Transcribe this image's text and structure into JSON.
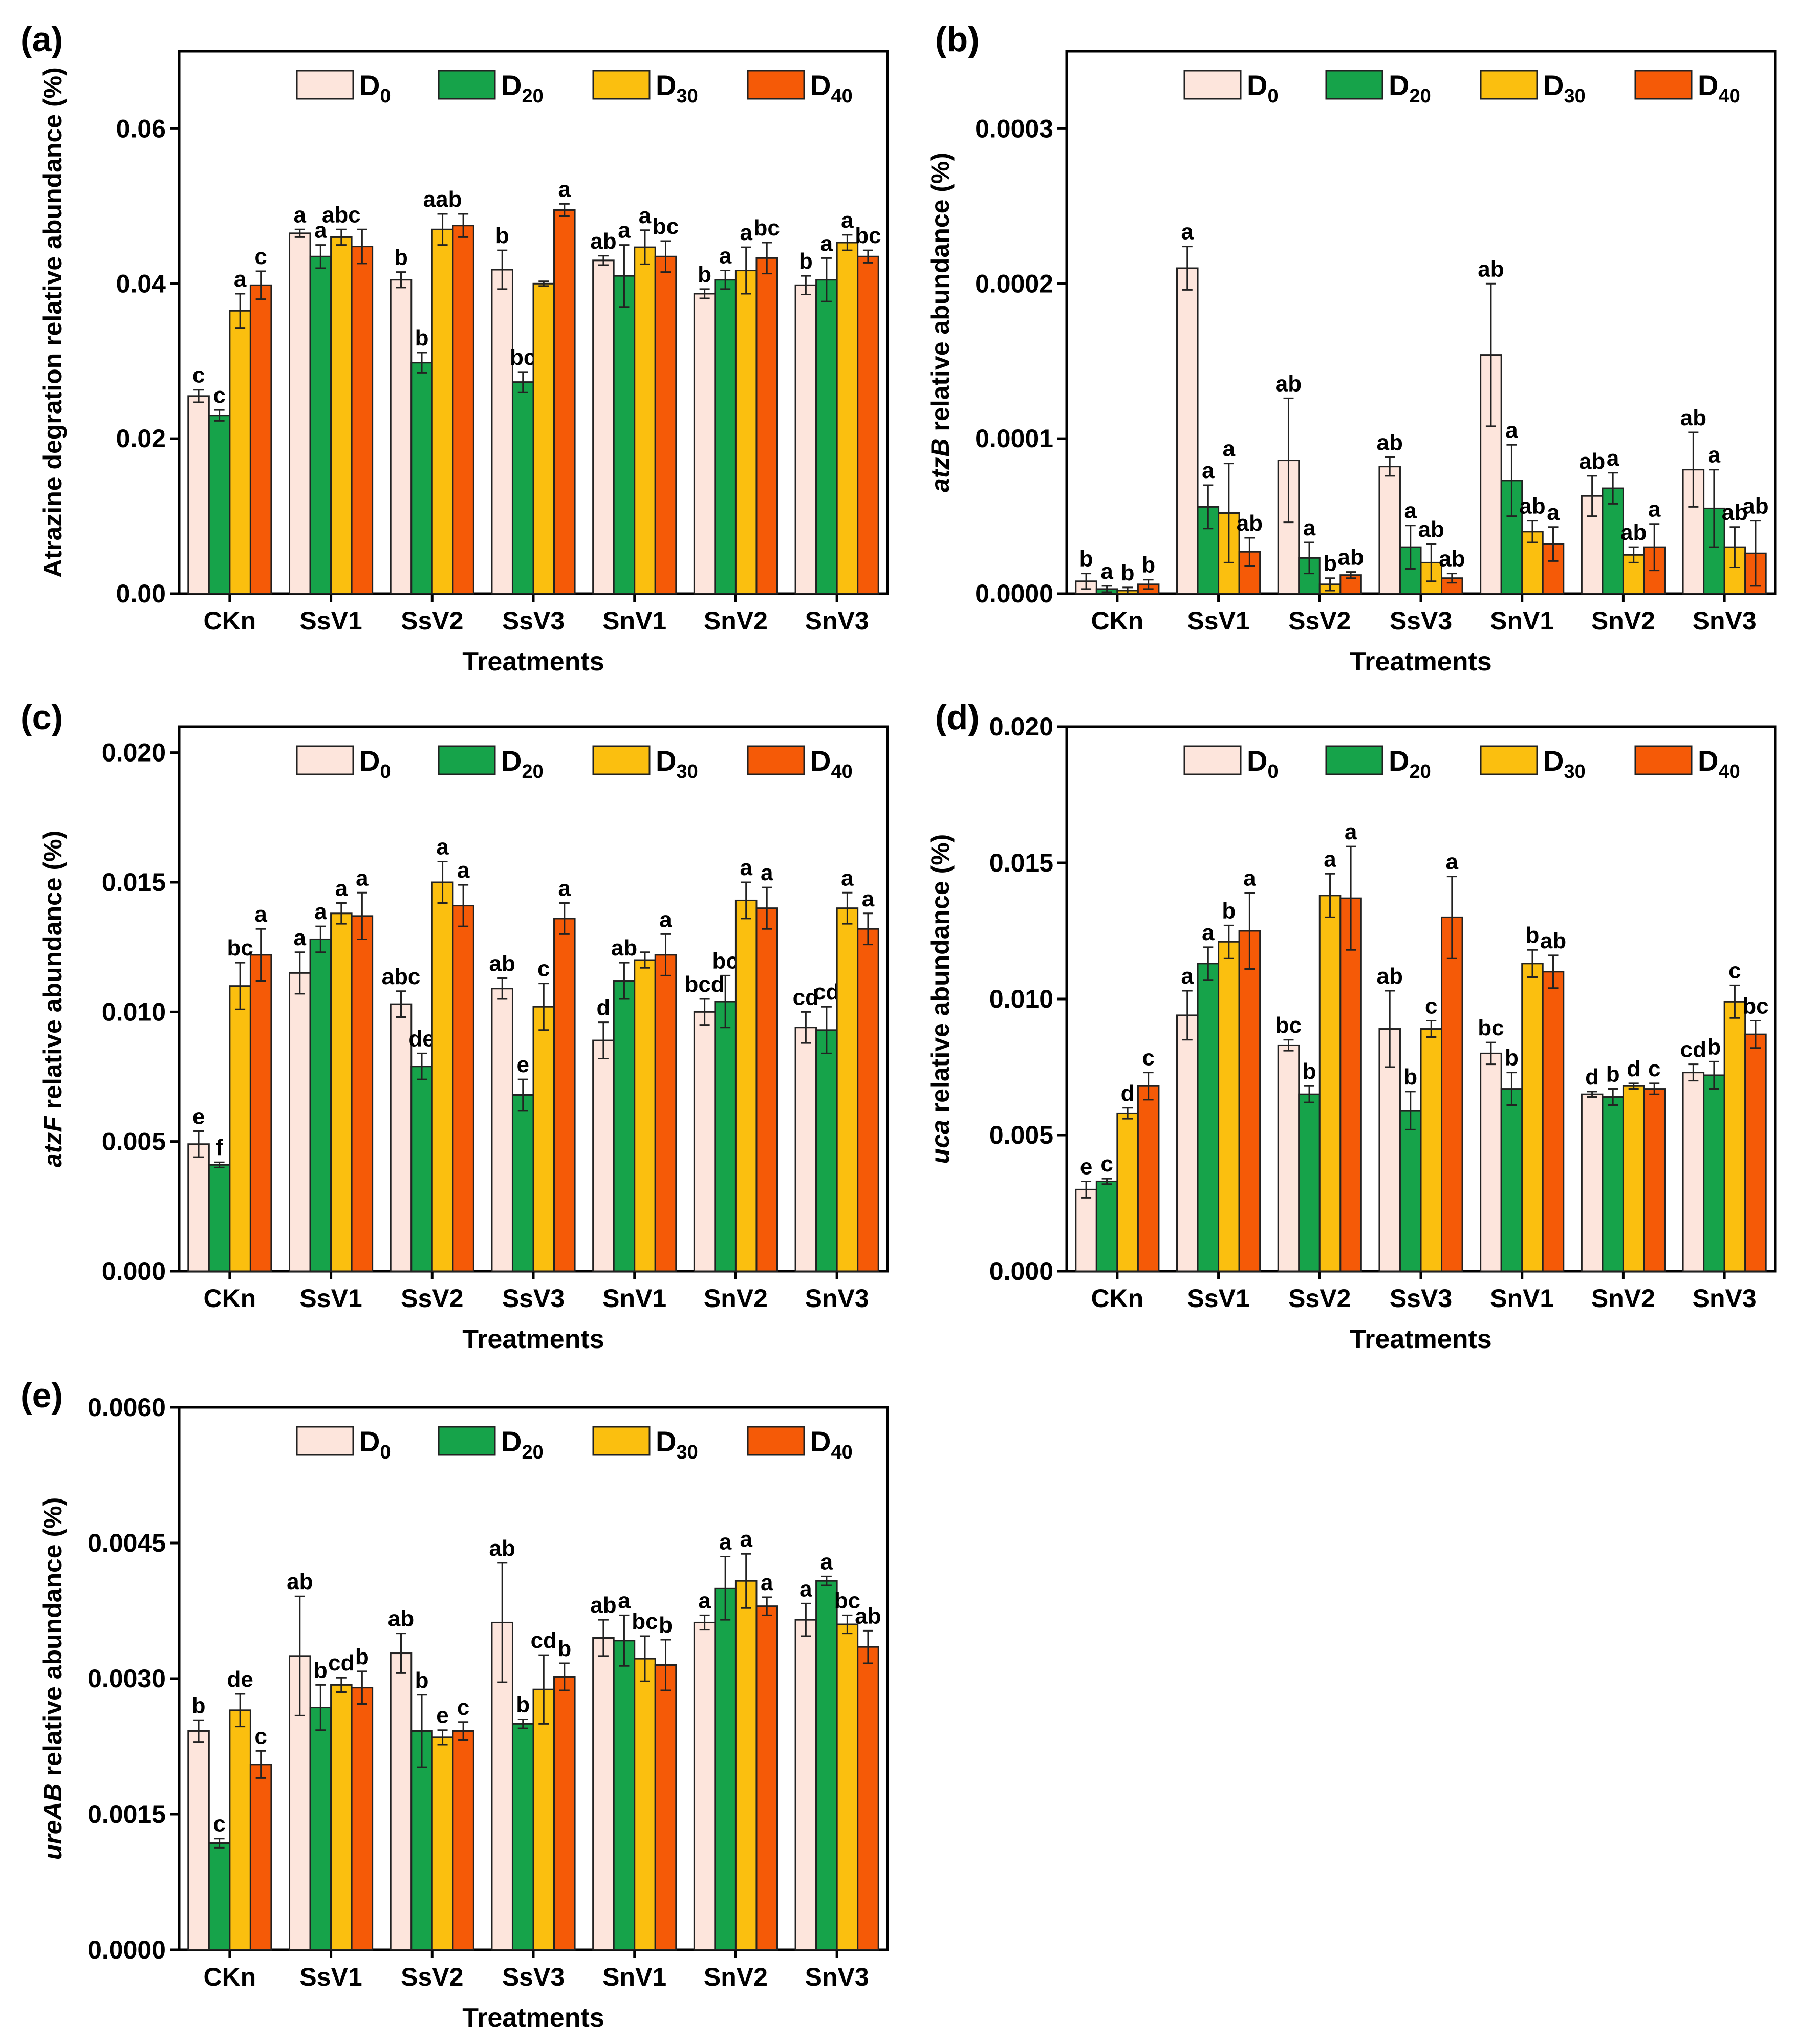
{
  "colors": {
    "D0": "#fde5dc",
    "D20": "#16a34a",
    "D30": "#fbbf0f",
    "D40": "#f55a07"
  },
  "chart_data": [
    {
      "id": "a",
      "panel_label": "(a)",
      "type": "bar",
      "ylabel_plain": "Atrazine degration relative abundance (%)",
      "ylabel_italic": "",
      "ylabel_suffix": "",
      "xlabel": "Treatments",
      "categories": [
        "CKn",
        "SsV1",
        "SsV2",
        "SsV3",
        "SnV1",
        "SnV2",
        "SnV3"
      ],
      "legend": [
        {
          "base": "D",
          "sub": "0",
          "key": "D0"
        },
        {
          "base": "D",
          "sub": "20",
          "key": "D20"
        },
        {
          "base": "D",
          "sub": "30",
          "key": "D30"
        },
        {
          "base": "D",
          "sub": "40",
          "key": "D40"
        }
      ],
      "ylim": [
        0,
        0.07
      ],
      "yticks": [
        0,
        0.02,
        0.04,
        0.06
      ],
      "ytick_labels": [
        "0.00",
        "0.02",
        "0.04",
        "0.06"
      ],
      "series": [
        {
          "name": "D0",
          "values": [
            0.0255,
            0.0465,
            0.0405,
            0.0418,
            0.043,
            0.0387,
            0.0398
          ],
          "errors": [
            0.0008,
            0.0005,
            0.001,
            0.0025,
            0.0006,
            0.0006,
            0.0012
          ],
          "letters": [
            "c",
            "a",
            "b",
            "b",
            "ab",
            "b",
            "b"
          ]
        },
        {
          "name": "D20",
          "values": [
            0.023,
            0.0435,
            0.0298,
            0.0273,
            0.041,
            0.0405,
            0.0405
          ],
          "errors": [
            0.0007,
            0.0015,
            0.0013,
            0.0013,
            0.004,
            0.0012,
            0.0028
          ],
          "letters": [
            "c",
            "a",
            "b",
            "bc",
            "a",
            "a",
            "a"
          ]
        },
        {
          "name": "D30",
          "values": [
            0.0365,
            0.046,
            0.047,
            0.04,
            0.0447,
            0.0417,
            0.0453
          ],
          "errors": [
            0.0022,
            0.001,
            0.002,
            0.0003,
            0.0022,
            0.003,
            0.001
          ],
          "letters": [
            "a",
            "abc",
            "aab",
            "",
            "a",
            "a",
            "a"
          ]
        },
        {
          "name": "D40",
          "values": [
            0.0398,
            0.0448,
            0.0475,
            0.0495,
            0.0435,
            0.0433,
            0.0435
          ],
          "errors": [
            0.0018,
            0.0022,
            0.0015,
            0.0008,
            0.002,
            0.002,
            0.0008
          ],
          "letters": [
            "c",
            "",
            "",
            "a",
            "bc",
            "bc",
            "bc"
          ]
        }
      ]
    },
    {
      "id": "b",
      "panel_label": "(b)",
      "type": "bar",
      "ylabel_plain": "",
      "ylabel_italic": "atzB",
      "ylabel_suffix": " relative abundance (%)",
      "xlabel": "Treatments",
      "categories": [
        "CKn",
        "SsV1",
        "SsV2",
        "SsV3",
        "SnV1",
        "SnV2",
        "SnV3"
      ],
      "legend": [
        {
          "base": "D",
          "sub": "0",
          "key": "D0"
        },
        {
          "base": "D",
          "sub": "20",
          "key": "D20"
        },
        {
          "base": "D",
          "sub": "30",
          "key": "D30"
        },
        {
          "base": "D",
          "sub": "40",
          "key": "D40"
        }
      ],
      "ylim": [
        0,
        0.00035
      ],
      "yticks": [
        0,
        0.0001,
        0.0002,
        0.0003
      ],
      "ytick_labels": [
        "0.0000",
        "0.0001",
        "0.0002",
        "0.0003"
      ],
      "series": [
        {
          "name": "D0",
          "values": [
            8e-06,
            0.00021,
            8.6e-05,
            8.2e-05,
            0.000154,
            6.3e-05,
            8e-05
          ],
          "errors": [
            5e-06,
            1.4e-05,
            4e-05,
            6e-06,
            4.6e-05,
            1.3e-05,
            2.4e-05
          ],
          "letters": [
            "b",
            "a",
            "ab",
            "ab",
            "ab",
            "ab",
            "ab"
          ]
        },
        {
          "name": "D20",
          "values": [
            3e-06,
            5.6e-05,
            2.3e-05,
            3e-05,
            7.3e-05,
            6.8e-05,
            5.5e-05
          ],
          "errors": [
            2e-06,
            1.4e-05,
            1e-05,
            1.4e-05,
            2.3e-05,
            1e-05,
            2.5e-05
          ],
          "letters": [
            "a",
            "a",
            "a",
            "a",
            "a",
            "a",
            "a"
          ]
        },
        {
          "name": "D30",
          "values": [
            2e-06,
            5.2e-05,
            6e-06,
            2e-05,
            4e-05,
            2.5e-05,
            3e-05
          ],
          "errors": [
            2e-06,
            3.2e-05,
            4e-06,
            1.2e-05,
            7e-06,
            5e-06,
            1.3e-05
          ],
          "letters": [
            "b",
            "a",
            "b",
            "ab",
            "ab",
            "ab",
            "ab"
          ]
        },
        {
          "name": "D40",
          "values": [
            6e-06,
            2.7e-05,
            1.2e-05,
            1e-05,
            3.2e-05,
            3e-05,
            2.6e-05
          ],
          "errors": [
            3e-06,
            9e-06,
            2e-06,
            3e-06,
            1.1e-05,
            1.5e-05,
            2.1e-05
          ],
          "letters": [
            "b",
            "ab",
            "ab",
            "ab",
            "a",
            "a",
            "ab"
          ]
        }
      ]
    },
    {
      "id": "c",
      "panel_label": "(c)",
      "type": "bar",
      "ylabel_plain": "",
      "ylabel_italic": "atzF",
      "ylabel_suffix": " relative abundance (%)",
      "xlabel": "Treatments",
      "categories": [
        "CKn",
        "SsV1",
        "SsV2",
        "SsV3",
        "SnV1",
        "SnV2",
        "SnV3"
      ],
      "legend": [
        {
          "base": "D",
          "sub": "0",
          "key": "D0"
        },
        {
          "base": "D",
          "sub": "20",
          "key": "D20"
        },
        {
          "base": "D",
          "sub": "30",
          "key": "D30"
        },
        {
          "base": "D",
          "sub": "40",
          "key": "D40"
        }
      ],
      "ylim": [
        0,
        0.021
      ],
      "yticks": [
        0,
        0.005,
        0.01,
        0.015,
        0.02
      ],
      "ytick_labels": [
        "0.000",
        "0.005",
        "0.010",
        "0.015",
        "0.020"
      ],
      "series": [
        {
          "name": "D0",
          "values": [
            0.0049,
            0.0115,
            0.0103,
            0.0109,
            0.0089,
            0.01,
            0.0094
          ],
          "errors": [
            0.0005,
            0.0008,
            0.0005,
            0.0004,
            0.0007,
            0.0005,
            0.0006
          ],
          "letters": [
            "e",
            "a",
            "abc",
            "ab",
            "d",
            "bcd",
            "cd"
          ]
        },
        {
          "name": "D20",
          "values": [
            0.0041,
            0.0128,
            0.0079,
            0.0068,
            0.0112,
            0.0104,
            0.0093
          ],
          "errors": [
            0.0001,
            0.0005,
            0.0005,
            0.0006,
            0.0007,
            0.001,
            0.0009
          ],
          "letters": [
            "f",
            "a",
            "de",
            "e",
            "ab",
            "bc",
            "cd"
          ]
        },
        {
          "name": "D30",
          "values": [
            0.011,
            0.0138,
            0.015,
            0.0102,
            0.012,
            0.0143,
            0.014
          ],
          "errors": [
            0.0009,
            0.0004,
            0.0008,
            0.0009,
            0.0003,
            0.0007,
            0.0006
          ],
          "letters": [
            "bc",
            "a",
            "a",
            "c",
            "",
            "a",
            "a"
          ]
        },
        {
          "name": "D40",
          "values": [
            0.0122,
            0.0137,
            0.0141,
            0.0136,
            0.0122,
            0.014,
            0.0132
          ],
          "errors": [
            0.001,
            0.0009,
            0.0008,
            0.0006,
            0.0008,
            0.0008,
            0.0006
          ],
          "letters": [
            "a",
            "a",
            "a",
            "a",
            "a",
            "a",
            "a"
          ]
        }
      ]
    },
    {
      "id": "d",
      "panel_label": "(d)",
      "type": "bar",
      "ylabel_plain": "",
      "ylabel_italic": "uca",
      "ylabel_suffix": " relative abundance (%)",
      "xlabel": "Treatments",
      "categories": [
        "CKn",
        "SsV1",
        "SsV2",
        "SsV3",
        "SnV1",
        "SnV2",
        "SnV3"
      ],
      "legend": [
        {
          "base": "D",
          "sub": "0",
          "key": "D0"
        },
        {
          "base": "D",
          "sub": "20",
          "key": "D20"
        },
        {
          "base": "D",
          "sub": "30",
          "key": "D30"
        },
        {
          "base": "D",
          "sub": "40",
          "key": "D40"
        }
      ],
      "ylim": [
        0,
        0.02
      ],
      "yticks": [
        0,
        0.005,
        0.01,
        0.015,
        0.02
      ],
      "ytick_labels": [
        "0.000",
        "0.005",
        "0.010",
        "0.015",
        "0.020"
      ],
      "series": [
        {
          "name": "D0",
          "values": [
            0.003,
            0.0094,
            0.0083,
            0.0089,
            0.008,
            0.0065,
            0.0073
          ],
          "errors": [
            0.0003,
            0.0009,
            0.0002,
            0.0014,
            0.0004,
            0.0001,
            0.0003
          ],
          "letters": [
            "e",
            "a",
            "bc",
            "ab",
            "bc",
            "d",
            "cd"
          ]
        },
        {
          "name": "D20",
          "values": [
            0.0033,
            0.0113,
            0.0065,
            0.0059,
            0.0067,
            0.0064,
            0.0072
          ],
          "errors": [
            0.0001,
            0.0006,
            0.0003,
            0.0007,
            0.0006,
            0.0003,
            0.0005
          ],
          "letters": [
            "c",
            "a",
            "b",
            "b",
            "b",
            "b",
            "b"
          ]
        },
        {
          "name": "D30",
          "values": [
            0.0058,
            0.0121,
            0.0138,
            0.0089,
            0.0113,
            0.0068,
            0.0099
          ],
          "errors": [
            0.0002,
            0.0006,
            0.0008,
            0.0003,
            0.0005,
            0.0001,
            0.0006
          ],
          "letters": [
            "d",
            "b",
            "a",
            "c",
            "b",
            "d",
            "c"
          ]
        },
        {
          "name": "D40",
          "values": [
            0.0068,
            0.0125,
            0.0137,
            0.013,
            0.011,
            0.0067,
            0.0087
          ],
          "errors": [
            0.0005,
            0.0014,
            0.0019,
            0.0015,
            0.0006,
            0.0002,
            0.0005
          ],
          "letters": [
            "c",
            "a",
            "a",
            "a",
            "ab",
            "c",
            "bc"
          ]
        }
      ]
    },
    {
      "id": "e",
      "panel_label": "(e)",
      "type": "bar",
      "ylabel_plain": "",
      "ylabel_italic": "ureAB",
      "ylabel_suffix": " relative abundance (%)",
      "xlabel": "Treatments",
      "categories": [
        "CKn",
        "SsV1",
        "SsV2",
        "SsV3",
        "SnV1",
        "SnV2",
        "SnV3"
      ],
      "legend": [
        {
          "base": "D",
          "sub": "0",
          "key": "D0"
        },
        {
          "base": "D",
          "sub": "20",
          "key": "D20"
        },
        {
          "base": "D",
          "sub": "30",
          "key": "D30"
        },
        {
          "base": "D",
          "sub": "40",
          "key": "D40"
        }
      ],
      "ylim": [
        0,
        0.006
      ],
      "yticks": [
        0,
        0.0015,
        0.003,
        0.0045,
        0.006
      ],
      "ytick_labels": [
        "0.0000",
        "0.0015",
        "0.0030",
        "0.0045",
        "0.0060"
      ],
      "series": [
        {
          "name": "D0",
          "values": [
            0.00242,
            0.00325,
            0.00328,
            0.00362,
            0.00345,
            0.00362,
            0.00365
          ],
          "errors": [
            0.00012,
            0.00066,
            0.00022,
            0.00066,
            0.0002,
            8e-05,
            0.00018
          ],
          "letters": [
            "b",
            "ab",
            "ab",
            "ab",
            "ab",
            "a",
            "a"
          ]
        },
        {
          "name": "D20",
          "values": [
            0.00118,
            0.00268,
            0.00242,
            0.0025,
            0.00342,
            0.004,
            0.00408
          ],
          "errors": [
            5e-05,
            0.00025,
            0.0004,
            5e-05,
            0.00028,
            0.00035,
            5e-05
          ],
          "letters": [
            "c",
            "b",
            "b",
            "b",
            "a",
            "a",
            "a"
          ]
        },
        {
          "name": "D30",
          "values": [
            0.00265,
            0.00293,
            0.00235,
            0.00288,
            0.00322,
            0.00408,
            0.0036
          ],
          "errors": [
            0.00018,
            8e-05,
            8e-05,
            0.00038,
            0.00025,
            0.0003,
            0.0001
          ],
          "letters": [
            "de",
            "cd",
            "e",
            "cd",
            "bc",
            "a",
            "bc"
          ]
        },
        {
          "name": "D40",
          "values": [
            0.00205,
            0.0029,
            0.00242,
            0.00302,
            0.00315,
            0.0038,
            0.00335
          ],
          "errors": [
            0.00015,
            0.00018,
            0.0001,
            0.00015,
            0.00028,
            0.0001,
            0.00018
          ],
          "letters": [
            "c",
            "b",
            "c",
            "b",
            "b",
            "a",
            "ab"
          ]
        }
      ]
    }
  ]
}
